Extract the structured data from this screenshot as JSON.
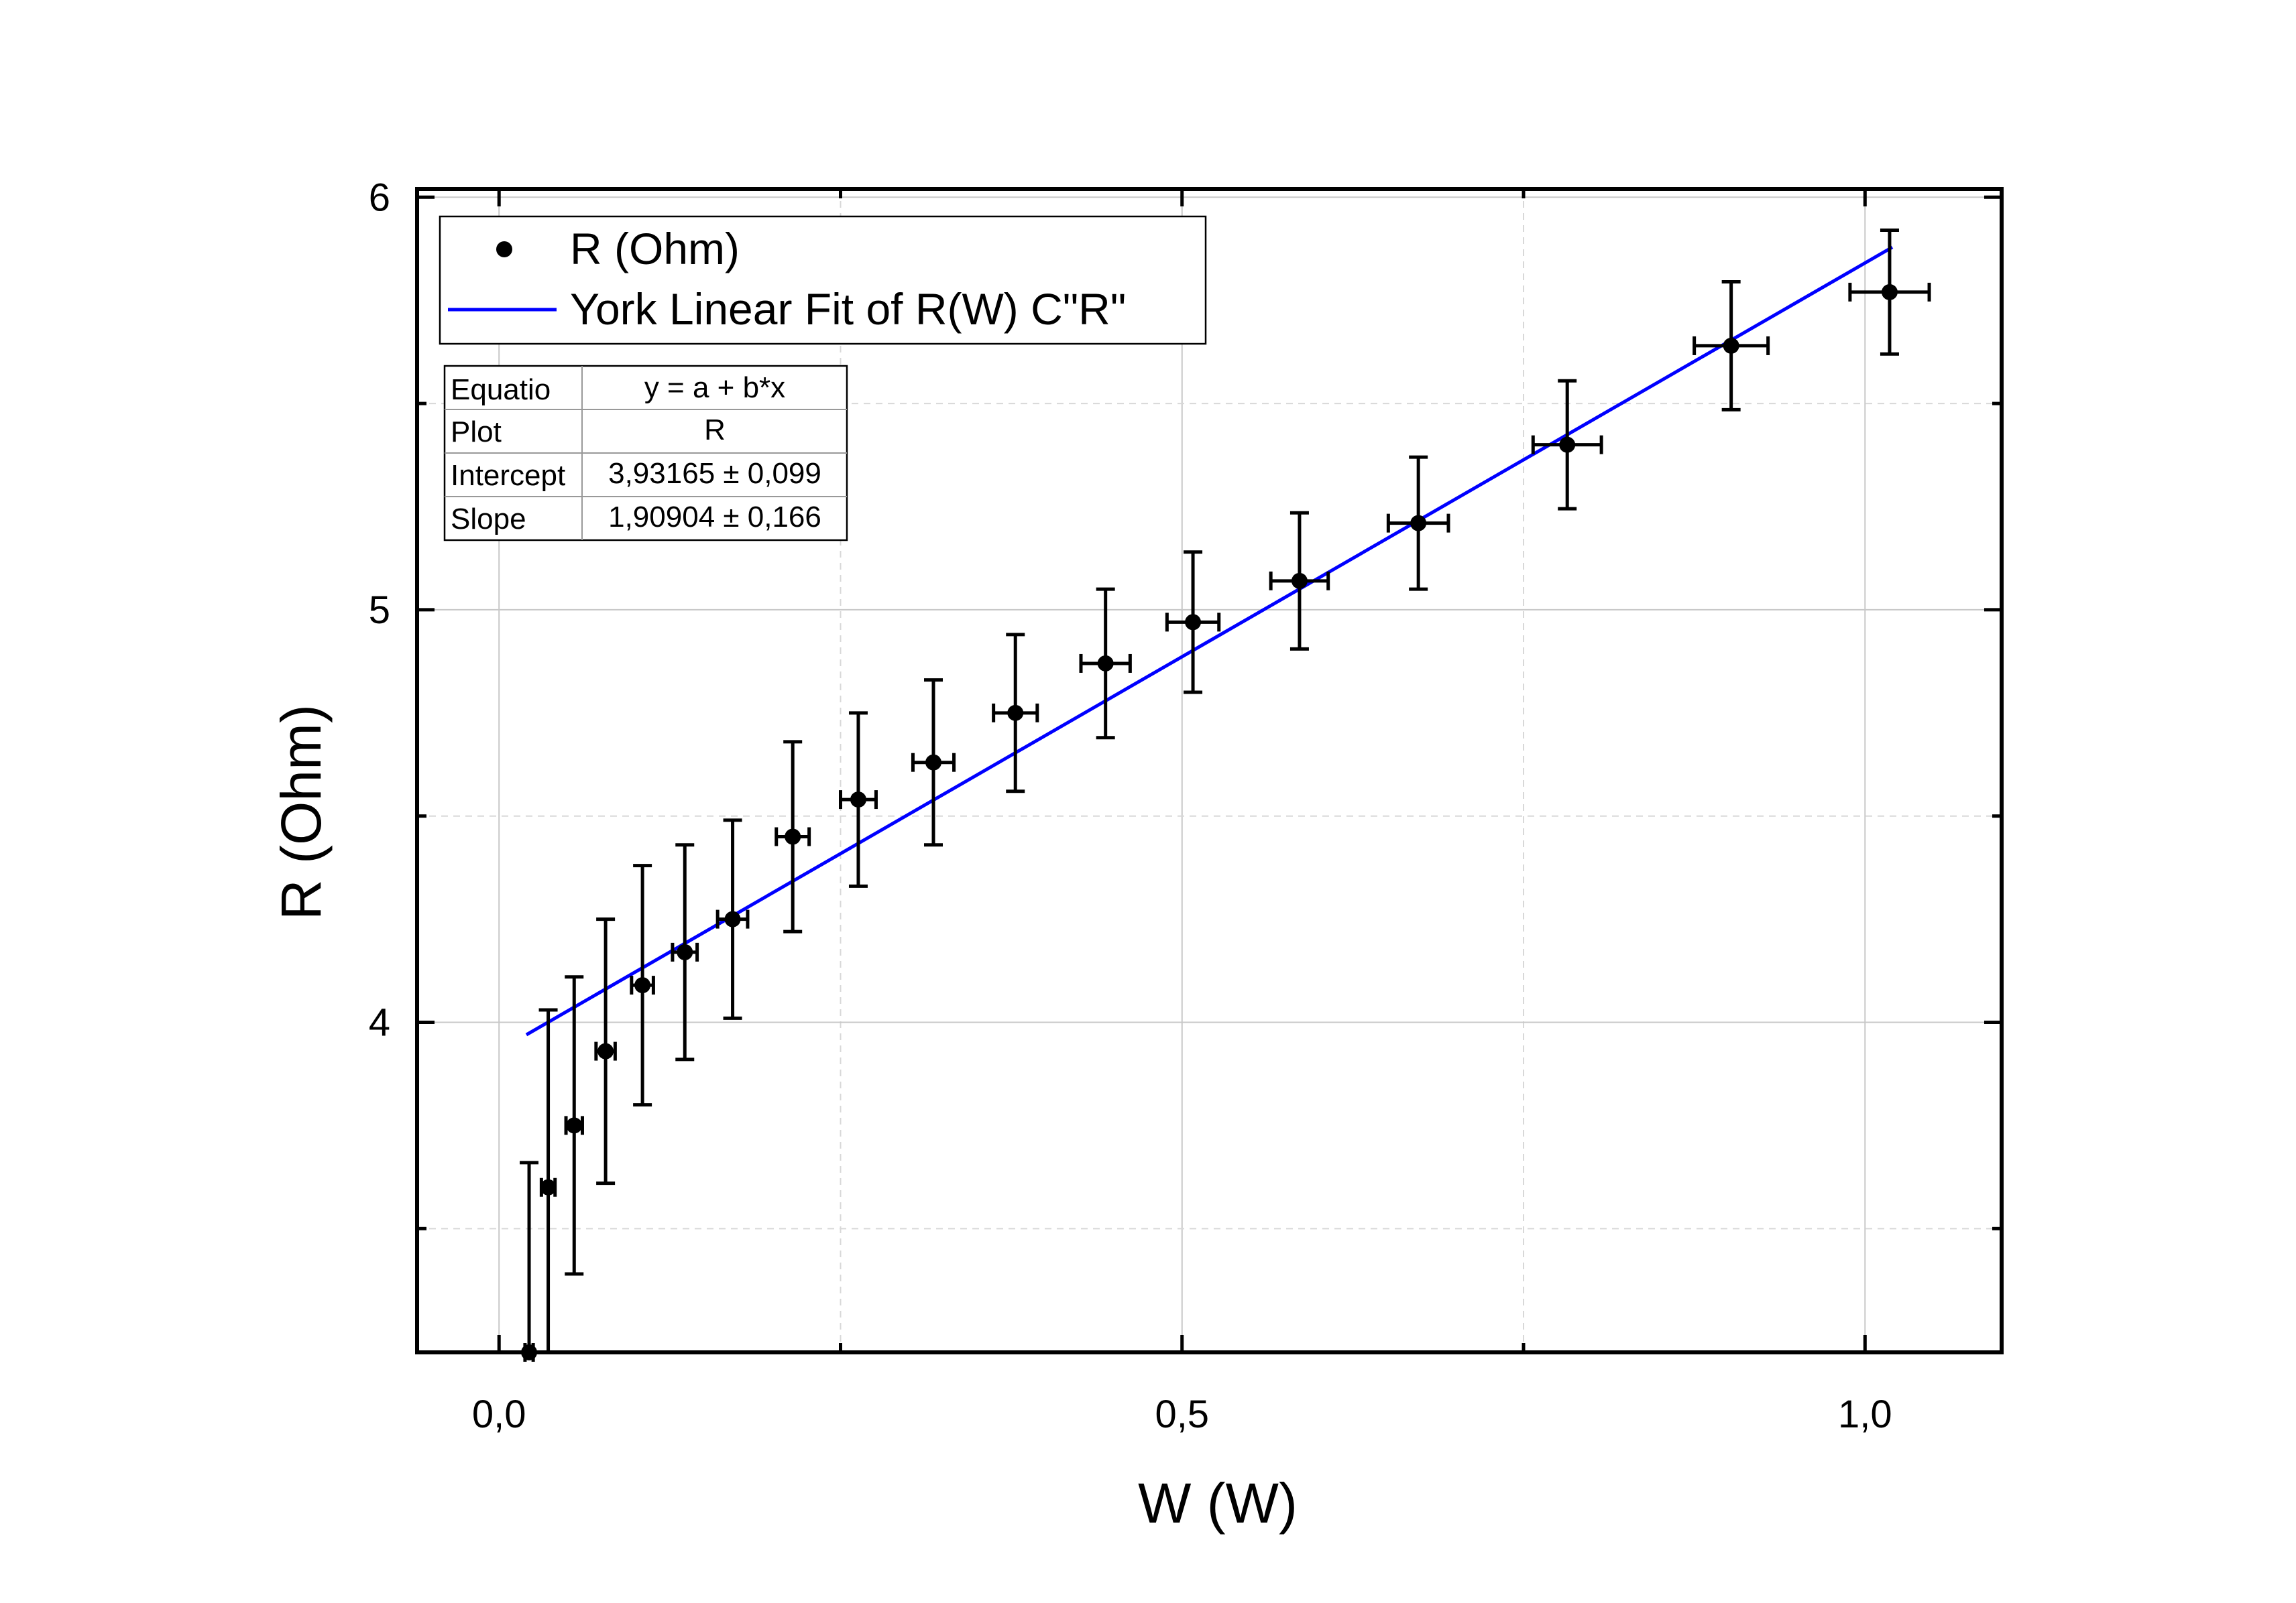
{
  "chart_data": {
    "type": "scatter",
    "xlabel": "W (W)",
    "ylabel": "R (Ohm)",
    "xlim": [
      -0.06,
      1.1
    ],
    "ylim": [
      3.2,
      6.02
    ],
    "x_ticks": [
      0.0,
      0.5,
      1.0
    ],
    "x_tick_labels": [
      "0,0",
      "0,5",
      "1,0"
    ],
    "x_minor_ticks": [
      0.25,
      0.75
    ],
    "y_ticks": [
      4,
      5,
      6
    ],
    "y_tick_labels": [
      "4",
      "5",
      "6"
    ],
    "y_minor_ticks": [
      3.5,
      4.5,
      5.5
    ],
    "grid": true,
    "legend_position": "top-left",
    "series": [
      {
        "name": "R (Ohm)",
        "kind": "scatter-errorbars",
        "color": "#000000",
        "points": [
          {
            "x": 0.022,
            "y": 3.2,
            "xerr": 0.003,
            "yerr": 0.46
          },
          {
            "x": 0.036,
            "y": 3.6,
            "xerr": 0.005,
            "yerr": 0.43
          },
          {
            "x": 0.055,
            "y": 3.75,
            "xerr": 0.006,
            "yerr": 0.36
          },
          {
            "x": 0.078,
            "y": 3.93,
            "xerr": 0.007,
            "yerr": 0.32
          },
          {
            "x": 0.105,
            "y": 4.09,
            "xerr": 0.008,
            "yerr": 0.29
          },
          {
            "x": 0.136,
            "y": 4.17,
            "xerr": 0.009,
            "yerr": 0.26
          },
          {
            "x": 0.171,
            "y": 4.25,
            "xerr": 0.011,
            "yerr": 0.24
          },
          {
            "x": 0.215,
            "y": 4.45,
            "xerr": 0.012,
            "yerr": 0.23
          },
          {
            "x": 0.263,
            "y": 4.54,
            "xerr": 0.013,
            "yerr": 0.21
          },
          {
            "x": 0.318,
            "y": 4.63,
            "xerr": 0.015,
            "yerr": 0.2
          },
          {
            "x": 0.378,
            "y": 4.75,
            "xerr": 0.016,
            "yerr": 0.19
          },
          {
            "x": 0.444,
            "y": 4.87,
            "xerr": 0.018,
            "yerr": 0.18
          },
          {
            "x": 0.508,
            "y": 4.97,
            "xerr": 0.019,
            "yerr": 0.17
          },
          {
            "x": 0.586,
            "y": 5.07,
            "xerr": 0.021,
            "yerr": 0.165
          },
          {
            "x": 0.673,
            "y": 5.21,
            "xerr": 0.022,
            "yerr": 0.16
          },
          {
            "x": 0.782,
            "y": 5.4,
            "xerr": 0.025,
            "yerr": 0.155
          },
          {
            "x": 0.902,
            "y": 5.64,
            "xerr": 0.027,
            "yerr": 0.155
          },
          {
            "x": 1.018,
            "y": 5.77,
            "xerr": 0.029,
            "yerr": 0.15
          }
        ]
      },
      {
        "name": "York Linear Fit of R(W) C\"R\"",
        "kind": "line",
        "color": "#0000ff",
        "intercept": 3.93165,
        "slope": 1.90904,
        "x_range": [
          0.02,
          1.02
        ]
      }
    ],
    "fit_table": {
      "rows": [
        {
          "label": "Equatio",
          "value": "y = a + b*x"
        },
        {
          "label": "Plot",
          "value": "R"
        },
        {
          "label": "Intercept",
          "value": "3,93165 ± 0,099"
        },
        {
          "label": "Slope",
          "value": "1,90904 ± 0,166"
        }
      ]
    }
  }
}
